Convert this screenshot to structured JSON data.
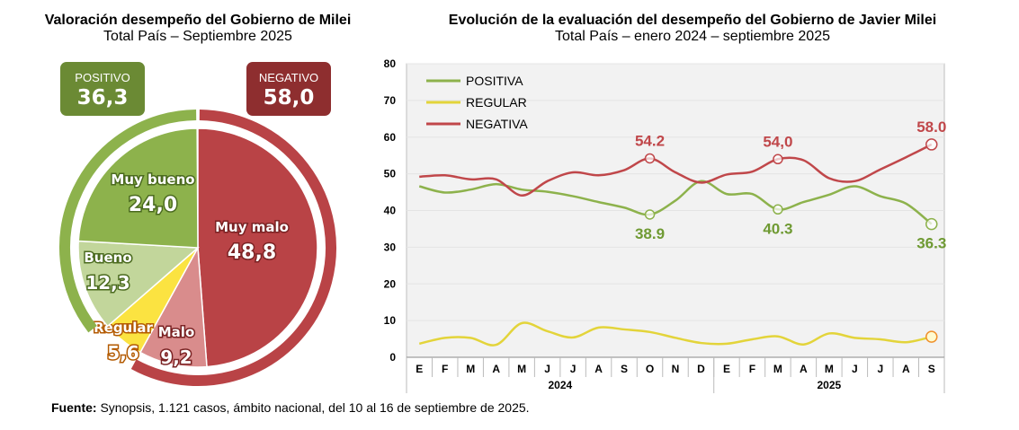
{
  "chart_data": [
    {
      "type": "pie",
      "title": "Valoración desempeño del Gobierno de Milei",
      "subtitle": "Total País – Septiembre 2025",
      "slices": [
        {
          "label": "Muy malo",
          "value": 48.8,
          "display": "48,8",
          "color": "#b94346"
        },
        {
          "label": "Malo",
          "value": 9.2,
          "display": "9,2",
          "color": "#d98c8c"
        },
        {
          "label": "Regular",
          "value": 5.6,
          "display": "5,6",
          "color": "#fbe341"
        },
        {
          "label": "Bueno",
          "value": 12.3,
          "display": "12,3",
          "color": "#c2d69b"
        },
        {
          "label": "Muy bueno",
          "value": 24.0,
          "display": "24,0",
          "color": "#8db24c"
        }
      ],
      "groups": [
        {
          "label": "POSITIVO",
          "display": "36,3",
          "value": 36.3,
          "color": "#6b8a34",
          "ring": "#8db24c"
        },
        {
          "label": "NEGATIVO",
          "display": "58,0",
          "value": 58.0,
          "color": "#8e2e2f",
          "ring": "#b94346"
        }
      ]
    },
    {
      "type": "line",
      "title": "Evolución de la evaluación del desempeño del Gobierno de Javier Milei",
      "subtitle": "Total País – enero 2024 – septiembre 2025",
      "categories": [
        "E",
        "F",
        "M",
        "A",
        "M",
        "J",
        "J",
        "A",
        "S",
        "O",
        "N",
        "D",
        "E",
        "F",
        "M",
        "A",
        "M",
        "J",
        "J",
        "A",
        "S"
      ],
      "years": [
        {
          "label": "2024",
          "months": 12
        },
        {
          "label": "2025",
          "months": 9
        }
      ],
      "ylim": [
        0,
        80
      ],
      "yticks": [
        0,
        10,
        20,
        30,
        40,
        50,
        60,
        70,
        80
      ],
      "legend": "top-left",
      "series": [
        {
          "name": "POSITIVA",
          "color": "#8db24c",
          "labelColor": "#6f9a33",
          "values": [
            46.6,
            44.9,
            45.7,
            47.2,
            45.7,
            45.1,
            43.9,
            42.3,
            40.8,
            38.9,
            42.7,
            48,
            44.5,
            44.5,
            40.3,
            42.3,
            44.3,
            46.6,
            43.9,
            41.9,
            36.3
          ],
          "annotations": [
            {
              "index": 9,
              "text": "38.9"
            },
            {
              "index": 14,
              "text": "40.3"
            },
            {
              "index": 20,
              "text": "36.3"
            }
          ]
        },
        {
          "name": "REGULAR",
          "color": "#e3d43a",
          "values": [
            3.7,
            5.3,
            5.3,
            3.4,
            9.3,
            7.1,
            5.4,
            8.1,
            7.6,
            6.9,
            5.3,
            3.9,
            3.7,
            4.9,
            5.7,
            3.5,
            6.5,
            5.3,
            4.9,
            4.1,
            5.6
          ],
          "annotations": []
        },
        {
          "name": "NEGATIVA",
          "color": "#c0474a",
          "labelColor": "#c0474a",
          "values": [
            49.2,
            49.6,
            48.5,
            48.5,
            44.1,
            48,
            50.4,
            49.6,
            51,
            54.2,
            50.4,
            47.6,
            49.8,
            50.6,
            54.0,
            53.7,
            48.8,
            48,
            51.2,
            54.5,
            58
          ],
          "annotations": [
            {
              "index": 9,
              "text": "54.2"
            },
            {
              "index": 14,
              "text": "54,0"
            },
            {
              "index": 20,
              "text": "58.0"
            }
          ]
        }
      ]
    }
  ],
  "footer": {
    "label": "Fuente:",
    "text": " Synopsis, 1.121 casos, ámbito nacional, del 10 al 16 de septiembre de 2025."
  }
}
